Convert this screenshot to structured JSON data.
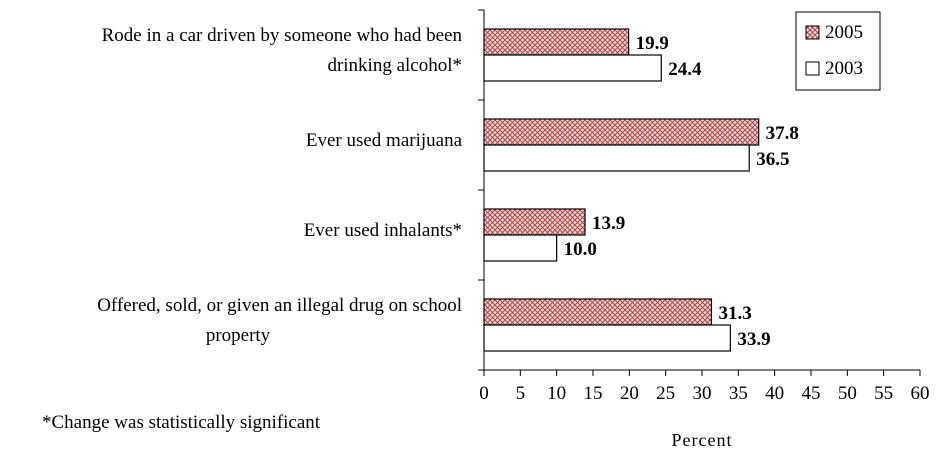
{
  "chart_data": {
    "type": "bar",
    "orientation": "horizontal",
    "categories": [
      [
        "Rode in a car driven by someone who had been",
        "drinking alcohol*"
      ],
      [
        "Ever used marijuana"
      ],
      [
        "Ever used inhalants*"
      ],
      [
        "Offered, sold, or given an illegal drug on school",
        "property"
      ]
    ],
    "series": [
      {
        "name": "2005",
        "values": [
          19.9,
          37.8,
          13.9,
          31.3
        ],
        "labels": [
          "19.9",
          "37.8",
          "13.9",
          "31.3"
        ],
        "fill": "hatched",
        "color": "#c0504d"
      },
      {
        "name": "2003",
        "values": [
          24.4,
          36.5,
          10.0,
          33.9
        ],
        "labels": [
          "24.4",
          "36.5",
          "10.0",
          "33.9"
        ],
        "fill": "white",
        "color": "#000000"
      }
    ],
    "xlabel": "Percent",
    "xlim": [
      0,
      60
    ],
    "xticks": [
      "0",
      "5",
      "10",
      "15",
      "20",
      "25",
      "30",
      "35",
      "40",
      "45",
      "50",
      "55",
      "60"
    ],
    "grid": false,
    "legend_position": "top-right",
    "annotation": "*Change was statistically significant"
  }
}
